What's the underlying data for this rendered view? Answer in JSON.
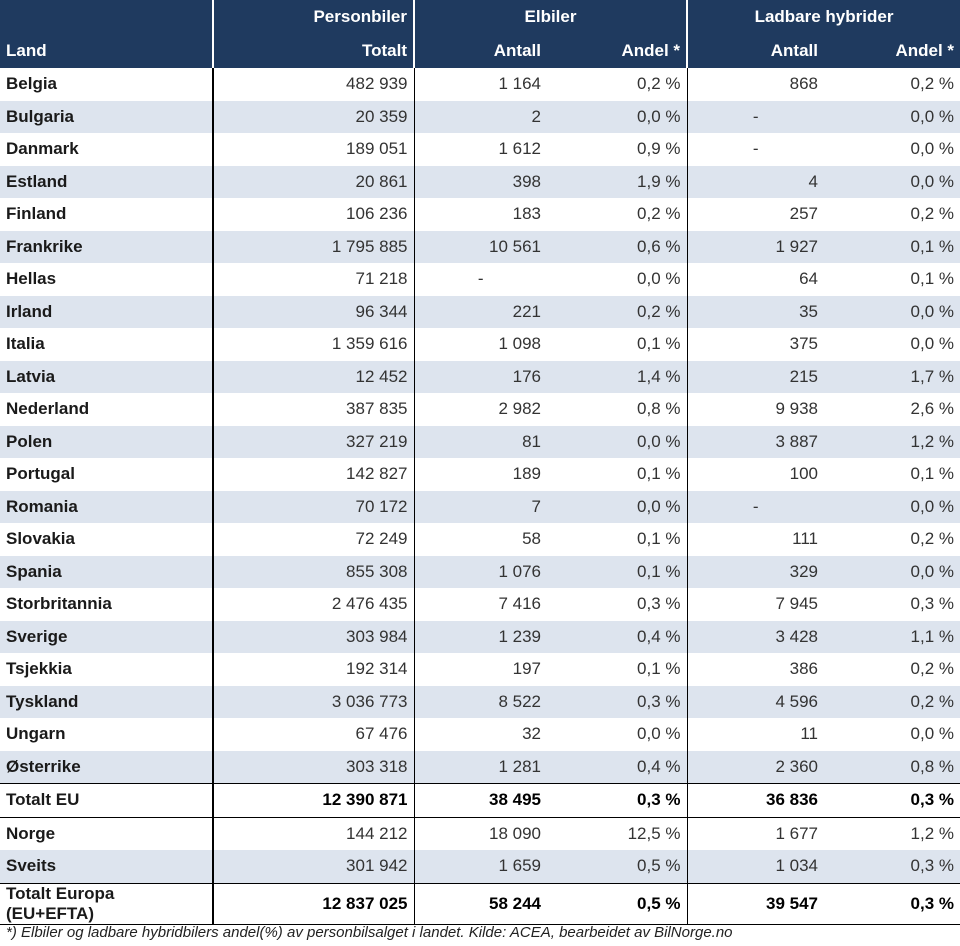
{
  "header": {
    "personbiler": "Personbiler",
    "elbiler": "Elbiler",
    "ladbare": "Ladbare hybrider",
    "land": "Land",
    "totalt": "Totalt",
    "antall_el": "Antall",
    "andel_el": "Andel *",
    "antall_lh": "Antall",
    "andel_lh": "Andel *"
  },
  "rows": [
    {
      "land": "Belgia",
      "totalt": "482 939",
      "el_antall": "1 164",
      "el_andel": "0,2 %",
      "lh_antall": "868",
      "lh_andel": "0,2 %"
    },
    {
      "land": "Bulgaria",
      "totalt": "20 359",
      "el_antall": "2",
      "el_andel": "0,0 %",
      "lh_antall": "-",
      "lh_andel": "0,0 %"
    },
    {
      "land": "Danmark",
      "totalt": "189 051",
      "el_antall": "1 612",
      "el_andel": "0,9 %",
      "lh_antall": "-",
      "lh_andel": "0,0 %"
    },
    {
      "land": "Estland",
      "totalt": "20 861",
      "el_antall": "398",
      "el_andel": "1,9 %",
      "lh_antall": "4",
      "lh_andel": "0,0 %"
    },
    {
      "land": "Finland",
      "totalt": "106 236",
      "el_antall": "183",
      "el_andel": "0,2 %",
      "lh_antall": "257",
      "lh_andel": "0,2 %"
    },
    {
      "land": "Frankrike",
      "totalt": "1 795 885",
      "el_antall": "10 561",
      "el_andel": "0,6 %",
      "lh_antall": "1 927",
      "lh_andel": "0,1 %"
    },
    {
      "land": "Hellas",
      "totalt": "71 218",
      "el_antall": "-",
      "el_andel": "0,0 %",
      "lh_antall": "64",
      "lh_andel": "0,1 %"
    },
    {
      "land": "Irland",
      "totalt": "96 344",
      "el_antall": "221",
      "el_andel": "0,2 %",
      "lh_antall": "35",
      "lh_andel": "0,0 %"
    },
    {
      "land": "Italia",
      "totalt": "1 359 616",
      "el_antall": "1 098",
      "el_andel": "0,1 %",
      "lh_antall": "375",
      "lh_andel": "0,0 %"
    },
    {
      "land": "Latvia",
      "totalt": "12 452",
      "el_antall": "176",
      "el_andel": "1,4 %",
      "lh_antall": "215",
      "lh_andel": "1,7 %"
    },
    {
      "land": "Nederland",
      "totalt": "387 835",
      "el_antall": "2 982",
      "el_andel": "0,8 %",
      "lh_antall": "9 938",
      "lh_andel": "2,6 %"
    },
    {
      "land": "Polen",
      "totalt": "327 219",
      "el_antall": "81",
      "el_andel": "0,0 %",
      "lh_antall": "3 887",
      "lh_andel": "1,2 %"
    },
    {
      "land": "Portugal",
      "totalt": "142 827",
      "el_antall": "189",
      "el_andel": "0,1 %",
      "lh_antall": "100",
      "lh_andel": "0,1 %"
    },
    {
      "land": "Romania",
      "totalt": "70 172",
      "el_antall": "7",
      "el_andel": "0,0 %",
      "lh_antall": "-",
      "lh_andel": "0,0 %"
    },
    {
      "land": "Slovakia",
      "totalt": "72 249",
      "el_antall": "58",
      "el_andel": "0,1 %",
      "lh_antall": "111",
      "lh_andel": "0,2 %"
    },
    {
      "land": "Spania",
      "totalt": "855 308",
      "el_antall": "1 076",
      "el_andel": "0,1 %",
      "lh_antall": "329",
      "lh_andel": "0,0 %"
    },
    {
      "land": "Storbritannia",
      "totalt": "2 476 435",
      "el_antall": "7 416",
      "el_andel": "0,3 %",
      "lh_antall": "7 945",
      "lh_andel": "0,3 %"
    },
    {
      "land": "Sverige",
      "totalt": "303 984",
      "el_antall": "1 239",
      "el_andel": "0,4 %",
      "lh_antall": "3 428",
      "lh_andel": "1,1 %"
    },
    {
      "land": "Tsjekkia",
      "totalt": "192 314",
      "el_antall": "197",
      "el_andel": "0,1 %",
      "lh_antall": "386",
      "lh_andel": "0,2 %"
    },
    {
      "land": "Tyskland",
      "totalt": "3 036 773",
      "el_antall": "8 522",
      "el_andel": "0,3 %",
      "lh_antall": "4 596",
      "lh_andel": "0,2 %"
    },
    {
      "land": "Ungarn",
      "totalt": "67 476",
      "el_antall": "32",
      "el_andel": "0,0 %",
      "lh_antall": "11",
      "lh_andel": "0,0 %"
    },
    {
      "land": "Østerrike",
      "totalt": "303 318",
      "el_antall": "1 281",
      "el_andel": "0,4 %",
      "lh_antall": "2 360",
      "lh_andel": "0,8 %"
    }
  ],
  "total_eu": {
    "land": "Totalt EU",
    "totalt": "12 390 871",
    "el_antall": "38 495",
    "el_andel": "0,3 %",
    "lh_antall": "36 836",
    "lh_andel": "0,3 %"
  },
  "efta": [
    {
      "land": "Norge",
      "totalt": "144 212",
      "el_antall": "18 090",
      "el_andel": "12,5 %",
      "lh_antall": "1 677",
      "lh_andel": "1,2 %"
    },
    {
      "land": "Sveits",
      "totalt": "301 942",
      "el_antall": "1 659",
      "el_andel": "0,5 %",
      "lh_antall": "1 034",
      "lh_andel": "0,3 %"
    }
  ],
  "total_europa": {
    "land": "Totalt Europa (EU+EFTA)",
    "totalt": "12 837 025",
    "el_antall": "58 244",
    "el_andel": "0,5 %",
    "lh_antall": "39 547",
    "lh_andel": "0,3 %"
  },
  "footnote": "*) Elbiler og ladbare hybridbilers andel(%) av personbilsalget i landet.  Kilde: ACEA, bearbeidet av BilNorge.no"
}
